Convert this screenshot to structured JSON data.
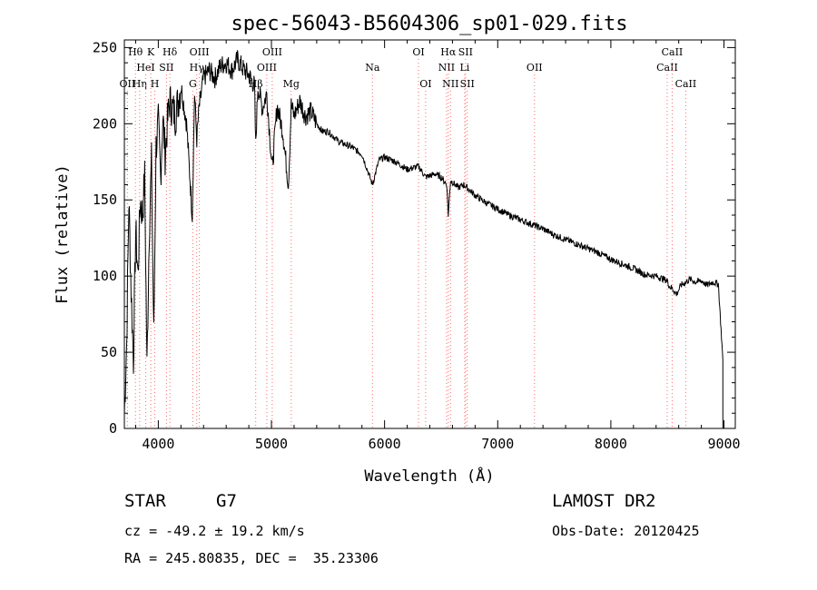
{
  "chart_data": {
    "type": "line",
    "title": "spec-56043-B5604306_sp01-029.fits",
    "xlabel": "Wavelength (Å)",
    "ylabel": "Flux (relative)",
    "xlim": [
      3700,
      9100
    ],
    "ylim": [
      0,
      255
    ],
    "xticks": [
      4000,
      5000,
      6000,
      7000,
      8000,
      9000
    ],
    "yticks": [
      0,
      50,
      100,
      150,
      200,
      250
    ],
    "grid": false,
    "line_color": "#000000",
    "marker_color": "#ff6a6a",
    "series": [
      {
        "x": [
          3700,
          3720,
          3740,
          3760,
          3780,
          3800,
          3820,
          3840,
          3860,
          3880,
          3900,
          3920,
          3940,
          3960,
          3980,
          4000,
          4020,
          4040,
          4060,
          4080,
          4100,
          4150,
          4200,
          4250,
          4300,
          4320,
          4340,
          4360,
          4400,
          4450,
          4500,
          4550,
          4600,
          4650,
          4700,
          4750,
          4800,
          4850,
          4861,
          4880,
          4920,
          4959,
          5007,
          5050,
          5100,
          5150,
          5175,
          5200,
          5250,
          5300,
          5350,
          5400,
          5450,
          5500,
          5600,
          5700,
          5800,
          5893,
          5950,
          6000,
          6100,
          6200,
          6300,
          6363,
          6450,
          6500,
          6550,
          6563,
          6583,
          6650,
          6700,
          6800,
          6900,
          7000,
          7100,
          7200,
          7300,
          7400,
          7500,
          7600,
          7700,
          7800,
          7900,
          8000,
          8100,
          8200,
          8300,
          8400,
          8498,
          8520,
          8542,
          8580,
          8620,
          8662,
          8700,
          8750,
          8800,
          8850,
          8900,
          8950,
          8990
        ],
        "y": [
          10,
          55,
          150,
          90,
          45,
          130,
          100,
          150,
          140,
          165,
          40,
          130,
          175,
          60,
          185,
          200,
          165,
          205,
          180,
          200,
          215,
          205,
          225,
          200,
          140,
          220,
          190,
          210,
          230,
          235,
          230,
          238,
          240,
          235,
          242,
          236,
          232,
          225,
          185,
          225,
          210,
          220,
          170,
          212,
          195,
          160,
          212,
          205,
          215,
          205,
          208,
          200,
          195,
          195,
          188,
          185,
          180,
          160,
          176,
          178,
          175,
          170,
          172,
          165,
          167,
          165,
          160,
          140,
          163,
          158,
          160,
          153,
          148,
          144,
          140,
          137,
          134,
          131,
          127,
          124,
          121,
          118,
          115,
          111,
          108,
          105,
          101,
          100,
          97,
          93,
          92,
          88,
          94,
          96,
          98,
          96,
          97,
          94,
          96,
          95,
          45
        ]
      }
    ],
    "lines": [
      {
        "name": "OII",
        "wl": 3727,
        "row": 3
      },
      {
        "name": "Hθ",
        "wl": 3798,
        "row": 1
      },
      {
        "name": "Hη",
        "wl": 3835,
        "row": 3
      },
      {
        "name": "HeI",
        "wl": 3889,
        "row": 2
      },
      {
        "name": "K",
        "wl": 3934,
        "row": 1
      },
      {
        "name": "SII",
        "wl": 4072,
        "row": 2
      },
      {
        "name": "H",
        "wl": 3969,
        "row": 3
      },
      {
        "name": "Hδ",
        "wl": 4102,
        "row": 1
      },
      {
        "name": "OIII",
        "wl": 4363,
        "row": 1
      },
      {
        "name": "Hγ",
        "wl": 4340,
        "row": 2
      },
      {
        "name": "G",
        "wl": 4305,
        "row": 3
      },
      {
        "name": "Hβ",
        "wl": 4861,
        "row": 3
      },
      {
        "name": "OIII",
        "wl": 4959,
        "row": 2
      },
      {
        "name": "OIII",
        "wl": 5007,
        "row": 1
      },
      {
        "name": "Mg",
        "wl": 5175,
        "row": 3
      },
      {
        "name": "Na",
        "wl": 5893,
        "row": 2
      },
      {
        "name": "OI",
        "wl": 6300,
        "row": 1
      },
      {
        "name": "OI",
        "wl": 6363,
        "row": 3
      },
      {
        "name": "NII",
        "wl": 6548,
        "row": 2
      },
      {
        "name": "Hα",
        "wl": 6563,
        "row": 1
      },
      {
        "name": "NII",
        "wl": 6583,
        "row": 3
      },
      {
        "name": "SII",
        "wl": 6716,
        "row": 1
      },
      {
        "name": "Li",
        "wl": 6708,
        "row": 2
      },
      {
        "name": "SII",
        "wl": 6731,
        "row": 3
      },
      {
        "name": "OII",
        "wl": 7325,
        "row": 2
      },
      {
        "name": "CaII",
        "wl": 8498,
        "row": 2
      },
      {
        "name": "CaII",
        "wl": 8542,
        "row": 1
      },
      {
        "name": "CaII",
        "wl": 8662,
        "row": 3
      }
    ]
  },
  "info": {
    "object_class": "STAR",
    "subclass": "G7",
    "survey": "LAMOST DR2",
    "redshift": "cz = -49.2 ± 19.2 km/s",
    "obs_date": "Obs-Date: 20120425",
    "coords": "RA = 245.80835, DEC =  35.23306"
  }
}
